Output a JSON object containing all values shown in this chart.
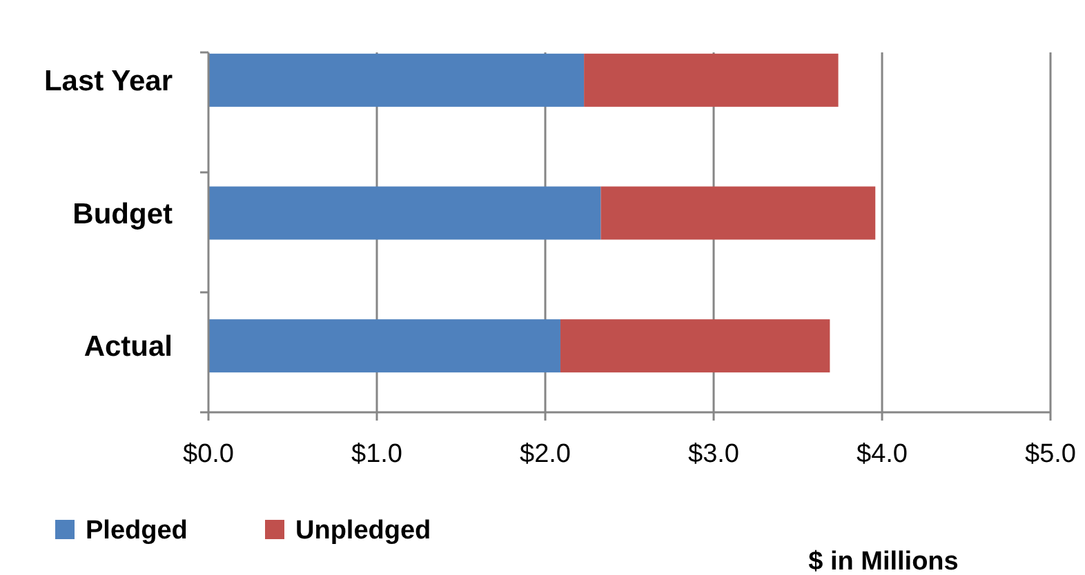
{
  "chart_data": {
    "type": "bar",
    "orientation": "horizontal",
    "stacked": true,
    "xlabel": "$ in Millions",
    "categories": [
      "Last Year",
      "Budget",
      "Actual"
    ],
    "series": [
      {
        "name": "Pledged",
        "color": "#4f81bd",
        "values": [
          2.23,
          2.33,
          2.09
        ]
      },
      {
        "name": "Unpledged",
        "color": "#c0504d",
        "values": [
          1.51,
          1.63,
          1.6
        ]
      }
    ],
    "xlim": [
      0,
      5
    ],
    "xticks": [
      {
        "value": 0,
        "label": "$0.0"
      },
      {
        "value": 1,
        "label": "$1.0"
      },
      {
        "value": 2,
        "label": "$2.0"
      },
      {
        "value": 3,
        "label": "$3.0"
      },
      {
        "value": 4,
        "label": "$4.0"
      },
      {
        "value": 5,
        "label": "$5.0"
      }
    ],
    "grid": "x",
    "legend": "bottom left"
  }
}
